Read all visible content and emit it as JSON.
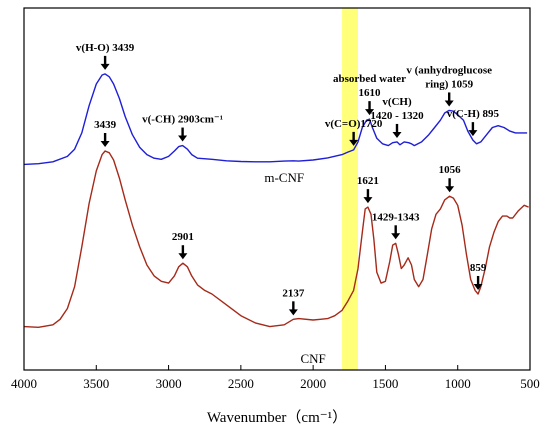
{
  "chart_data": {
    "type": "line",
    "xlabel": "Wavenumber（cm⁻¹）",
    "ylabel": "",
    "xlim": [
      4000,
      500
    ],
    "x_reversed": true,
    "xticks": [
      "4000",
      "3500",
      "3000",
      "2500",
      "2000",
      "1500",
      "1000",
      "500"
    ],
    "grid": false,
    "highlight_band": {
      "x": [
        1800,
        1690
      ],
      "color": "#ffff7a"
    },
    "series": [
      {
        "name": "m-CNF",
        "color": "#1f1fd6",
        "values_note": "relative transmittance (arbitrary units, 0 = top of plot, 1 = bottom)",
        "x": [
          4000,
          3900,
          3800,
          3700,
          3650,
          3600,
          3550,
          3500,
          3460,
          3439,
          3410,
          3380,
          3340,
          3300,
          3250,
          3200,
          3150,
          3100,
          3050,
          3000,
          2960,
          2930,
          2903,
          2870,
          2840,
          2800,
          2700,
          2600,
          2500,
          2400,
          2300,
          2200,
          2137,
          2100,
          2000,
          1900,
          1800,
          1760,
          1720,
          1690,
          1660,
          1630,
          1610,
          1590,
          1560,
          1520,
          1480,
          1450,
          1420,
          1400,
          1370,
          1340,
          1320,
          1300,
          1250,
          1200,
          1160,
          1120,
          1090,
          1059,
          1030,
          1000,
          960,
          930,
          895,
          870,
          840,
          800,
          760,
          720,
          680,
          640,
          600,
          560,
          520
        ],
        "values": [
          0.432,
          0.43,
          0.425,
          0.41,
          0.39,
          0.345,
          0.27,
          0.21,
          0.185,
          0.182,
          0.19,
          0.21,
          0.25,
          0.3,
          0.35,
          0.385,
          0.405,
          0.415,
          0.418,
          0.41,
          0.395,
          0.383,
          0.38,
          0.39,
          0.405,
          0.415,
          0.418,
          0.422,
          0.424,
          0.425,
          0.425,
          0.423,
          0.422,
          0.423,
          0.42,
          0.414,
          0.405,
          0.398,
          0.392,
          0.37,
          0.33,
          0.31,
          0.307,
          0.33,
          0.36,
          0.375,
          0.38,
          0.372,
          0.37,
          0.378,
          0.37,
          0.372,
          0.375,
          0.38,
          0.37,
          0.35,
          0.33,
          0.31,
          0.29,
          0.283,
          0.285,
          0.295,
          0.31,
          0.34,
          0.365,
          0.375,
          0.37,
          0.35,
          0.33,
          0.325,
          0.33,
          0.34,
          0.345,
          0.345,
          0.345
        ]
      },
      {
        "name": "CNF",
        "color": "#a52a1a",
        "values_note": "relative transmittance (arbitrary units, 0 = top of plot, 1 = bottom)",
        "x": [
          4000,
          3900,
          3800,
          3750,
          3700,
          3650,
          3600,
          3550,
          3500,
          3460,
          3439,
          3410,
          3380,
          3340,
          3300,
          3250,
          3200,
          3150,
          3100,
          3050,
          3000,
          2960,
          2930,
          2901,
          2870,
          2840,
          2800,
          2750,
          2700,
          2600,
          2500,
          2400,
          2300,
          2200,
          2137,
          2100,
          2000,
          1950,
          1900,
          1850,
          1800,
          1760,
          1720,
          1690,
          1660,
          1640,
          1621,
          1600,
          1580,
          1560,
          1530,
          1500,
          1470,
          1450,
          1429,
          1410,
          1390,
          1370,
          1343,
          1320,
          1300,
          1270,
          1240,
          1210,
          1180,
          1150,
          1120,
          1090,
          1056,
          1030,
          1000,
          970,
          940,
          910,
          880,
          859,
          840,
          810,
          780,
          750,
          720,
          690,
          660,
          640,
          620,
          580,
          540,
          510
        ],
        "values": [
          0.88,
          0.882,
          0.875,
          0.86,
          0.83,
          0.77,
          0.66,
          0.54,
          0.45,
          0.405,
          0.395,
          0.4,
          0.42,
          0.47,
          0.53,
          0.6,
          0.66,
          0.71,
          0.74,
          0.755,
          0.76,
          0.74,
          0.715,
          0.705,
          0.715,
          0.74,
          0.765,
          0.78,
          0.79,
          0.82,
          0.85,
          0.87,
          0.88,
          0.875,
          0.86,
          0.858,
          0.862,
          0.86,
          0.858,
          0.85,
          0.835,
          0.81,
          0.78,
          0.72,
          0.62,
          0.555,
          0.55,
          0.57,
          0.64,
          0.73,
          0.76,
          0.755,
          0.7,
          0.655,
          0.65,
          0.68,
          0.72,
          0.71,
          0.69,
          0.71,
          0.75,
          0.77,
          0.75,
          0.68,
          0.61,
          0.57,
          0.555,
          0.53,
          0.52,
          0.525,
          0.545,
          0.6,
          0.68,
          0.75,
          0.78,
          0.79,
          0.77,
          0.72,
          0.66,
          0.62,
          0.59,
          0.575,
          0.575,
          0.58,
          0.58,
          0.56,
          0.545,
          0.55
        ]
      }
    ],
    "series_labels": [
      {
        "text": "m-CNF",
        "series": "m-CNF",
        "at": [
          2200,
          0.48
        ]
      },
      {
        "text": "CNF",
        "series": "CNF",
        "at": [
          2000,
          0.98
        ]
      }
    ],
    "annotations": [
      {
        "lines": [
          "v(H-O) 3439"
        ],
        "x": 3439,
        "series": "m-CNF"
      },
      {
        "lines": [
          "v(-CH) 2903cm⁻¹"
        ],
        "x": 2903,
        "series": "m-CNF"
      },
      {
        "lines": [
          "v(C=O)1720"
        ],
        "x": 1720,
        "series": "m-CNF"
      },
      {
        "lines": [
          "absorbed water",
          "1610"
        ],
        "x": 1610,
        "series": "m-CNF"
      },
      {
        "lines": [
          "v(CH)",
          "1420 - 1320"
        ],
        "x": 1420,
        "series": "m-CNF"
      },
      {
        "lines": [
          "v (anhydroglucose",
          "ring) 1059"
        ],
        "x": 1059,
        "series": "m-CNF"
      },
      {
        "lines": [
          "v(C-H) 895"
        ],
        "x": 895,
        "series": "m-CNF"
      },
      {
        "lines": [
          "3439"
        ],
        "x": 3439,
        "series": "CNF"
      },
      {
        "lines": [
          "2901"
        ],
        "x": 2901,
        "series": "CNF"
      },
      {
        "lines": [
          "2137"
        ],
        "x": 2137,
        "series": "CNF"
      },
      {
        "lines": [
          "1621"
        ],
        "x": 1621,
        "series": "CNF"
      },
      {
        "lines": [
          "1429-1343"
        ],
        "x": 1429,
        "series": "CNF"
      },
      {
        "lines": [
          "1056"
        ],
        "x": 1056,
        "series": "CNF"
      },
      {
        "lines": [
          "859"
        ],
        "x": 859,
        "series": "CNF"
      }
    ]
  }
}
